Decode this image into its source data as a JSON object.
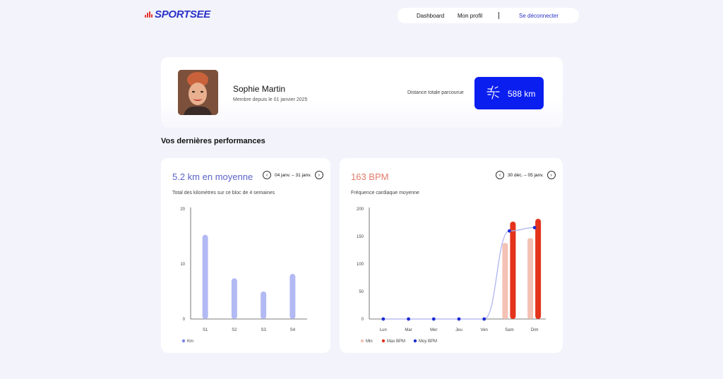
{
  "brand": {
    "name": "SPORTSEE",
    "accent": "#2b31c8",
    "logo_mark_color": "#e4322b"
  },
  "nav": {
    "dashboard": "Dashboard",
    "profile": "Mon profil",
    "logout": "Se déconnecter"
  },
  "profile": {
    "name": "Sophie Martin",
    "member_since": "Membre depuis le 01 janvier 2025",
    "distance_label": "Distance totale parcourue",
    "distance_value": "588 km",
    "distance_icon": "lightning-runner-icon",
    "distance_color": "#0b1ef0"
  },
  "section_title": "Vos dernières performances",
  "km_card": {
    "title": "5.2 km en moyenne",
    "subtitle": "Total des kilomètres sur ce bloc de 4 semaines",
    "range": "04 janv. – 31 janv.",
    "prev_icon": "chevron-left-icon",
    "next_icon": "chevron-right-icon"
  },
  "bpm_card": {
    "title": "163 BPM",
    "subtitle": "Fréquence cardiaque moyenne",
    "range": "30 déc. – 05 janv.",
    "prev_icon": "chevron-left-icon",
    "next_icon": "chevron-right-icon"
  },
  "chart_data": [
    {
      "type": "bar",
      "categories": [
        "S1",
        "S2",
        "S3",
        "S4"
      ],
      "series": [
        {
          "name": "Km",
          "values": [
            15.3,
            7.4,
            5.0,
            8.2
          ],
          "color": "#b3b9f3"
        }
      ],
      "yticks": [
        "0",
        "10",
        "20"
      ],
      "ylim": [
        0,
        20
      ],
      "grid": false,
      "legend": "bottom-left"
    },
    {
      "type": "bar",
      "categories": [
        "Lun",
        "Mar",
        "Mer",
        "Jeu",
        "Ven",
        "Sam",
        "Dim"
      ],
      "series": [
        {
          "name": "Min",
          "values": [
            0,
            0,
            0,
            0,
            0,
            138,
            147
          ],
          "color": "#f4c1b5"
        },
        {
          "name": "Max BPM",
          "values": [
            0,
            0,
            0,
            0,
            0,
            177,
            182
          ],
          "color": "#e4321b"
        },
        {
          "name": "Moy BPM",
          "type": "line",
          "values": [
            0,
            0,
            0,
            0,
            0,
            160,
            166
          ],
          "color": "#1d2bd6"
        }
      ],
      "yticks": [
        "0",
        "50",
        "100",
        "150",
        "200"
      ],
      "ylim": [
        0,
        200
      ],
      "grid": false,
      "legend": "bottom-left"
    }
  ]
}
